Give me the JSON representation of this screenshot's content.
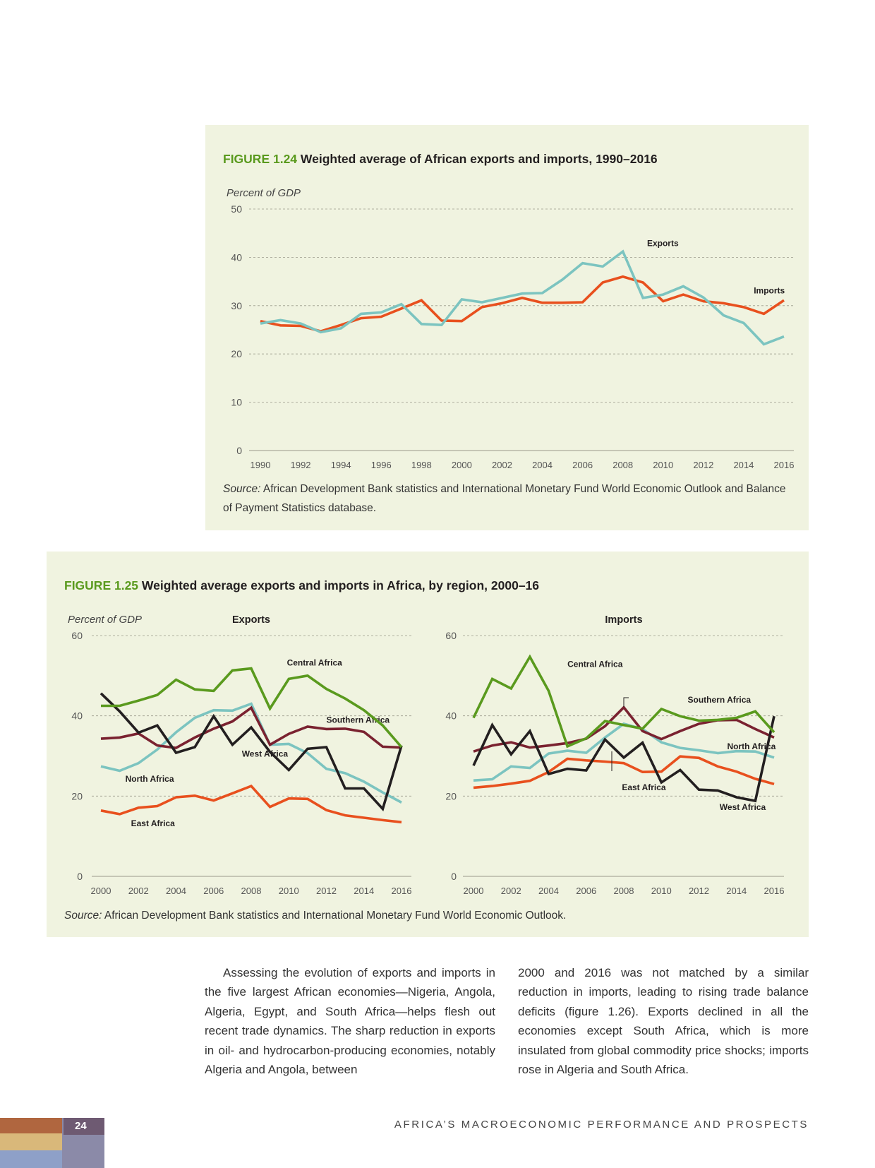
{
  "figure_124": {
    "number": "FIGURE 1.24",
    "title": "Weighted average of African exports and imports, 1990–2016",
    "source_label": "Source:",
    "source_text": " African Development Bank statistics and International Monetary Fund World Economic Outlook and Balance of Payment Statistics database."
  },
  "figure_125": {
    "number": "FIGURE 1.25",
    "title": "Weighted average exports and imports in Africa, by region, 2000–16",
    "source_label": "Source:",
    "source_text": " African Development Bank statistics and International Monetary Fund World Economic Outlook."
  },
  "chart_data": [
    {
      "type": "line",
      "title": "Weighted average of African exports and imports, 1990–2016",
      "ylabel": "Percent of GDP",
      "xlabel": "",
      "ylim": [
        0,
        50
      ],
      "yticks": [
        0,
        10,
        20,
        30,
        40,
        50
      ],
      "xticks": [
        1990,
        1992,
        1994,
        1996,
        1998,
        2000,
        2002,
        2004,
        2006,
        2008,
        2010,
        2012,
        2014,
        2016
      ],
      "grid": true,
      "x": [
        1990,
        1991,
        1992,
        1993,
        1994,
        1995,
        1996,
        1997,
        1998,
        1999,
        2000,
        2001,
        2002,
        2003,
        2004,
        2005,
        2006,
        2007,
        2008,
        2009,
        2010,
        2011,
        2012,
        2013,
        2014,
        2015,
        2016
      ],
      "series": [
        {
          "name": "Imports",
          "color": "#e8501e",
          "label_at": 2014.5,
          "label_value": 32.5,
          "values": [
            26.8,
            25.9,
            25.8,
            24.7,
            26.0,
            27.4,
            27.7,
            29.4,
            31.1,
            26.9,
            26.8,
            29.7,
            30.5,
            31.6,
            30.6,
            30.6,
            30.7,
            34.8,
            36.0,
            34.8,
            30.9,
            32.3,
            30.9,
            30.5,
            29.7,
            28.3,
            31.1
          ]
        },
        {
          "name": "Exports",
          "color": "#7cc4c0",
          "label_at": 2009.2,
          "label_value": 42.3,
          "values": [
            26.3,
            27.0,
            26.3,
            24.5,
            25.3,
            28.3,
            28.6,
            30.3,
            26.2,
            26.0,
            31.3,
            30.7,
            31.6,
            32.5,
            32.6,
            35.4,
            38.8,
            38.1,
            41.2,
            31.6,
            32.3,
            34.0,
            31.7,
            28.0,
            26.4,
            22.0,
            23.6
          ]
        }
      ]
    },
    {
      "type": "line",
      "title": "Exports",
      "ylabel": "Percent of GDP",
      "ylim": [
        0,
        60
      ],
      "yticks": [
        0,
        20,
        40,
        60
      ],
      "xticks": [
        2000,
        2002,
        2004,
        2006,
        2008,
        2010,
        2012,
        2014,
        2016
      ],
      "grid": true,
      "x": [
        2000,
        2001,
        2002,
        2003,
        2004,
        2005,
        2006,
        2007,
        2008,
        2009,
        2010,
        2011,
        2012,
        2013,
        2014,
        2015,
        2016
      ],
      "series": [
        {
          "name": "East Africa",
          "color": "#e8501e",
          "label_at": 2001.6,
          "label_value": 12.5,
          "values": [
            16.4,
            15.5,
            17.1,
            17.5,
            19.7,
            20.1,
            18.9,
            20.7,
            22.5,
            17.3,
            19.4,
            19.3,
            16.5,
            15.2,
            14.6,
            14.0,
            13.5
          ]
        },
        {
          "name": "North Africa",
          "color": "#7cc4c0",
          "label_at": 2001.3,
          "label_value": 23.6,
          "values": [
            27.4,
            26.3,
            28.2,
            31.6,
            35.9,
            39.5,
            41.4,
            41.3,
            43.0,
            32.8,
            33.0,
            30.7,
            26.8,
            25.7,
            23.6,
            20.9,
            18.4
          ]
        },
        {
          "name": "Southern Africa",
          "color": "#7a2230",
          "label_at": 2012.0,
          "label_value": 38.3,
          "values": [
            34.3,
            34.6,
            35.6,
            32.6,
            32.0,
            34.6,
            36.8,
            38.6,
            42.0,
            32.8,
            35.5,
            37.3,
            36.7,
            36.8,
            36.0,
            32.3,
            32.1
          ]
        },
        {
          "name": "West Africa",
          "color": "#231f20",
          "label_at": 2007.5,
          "label_value": 29.8,
          "values": [
            45.6,
            41.1,
            35.8,
            37.6,
            30.8,
            32.2,
            39.9,
            32.8,
            37.1,
            31.0,
            26.5,
            31.8,
            32.2,
            21.9,
            21.9,
            16.8,
            32.6
          ]
        },
        {
          "name": "Central Africa",
          "color": "#5a9a1e",
          "label_at": 2009.9,
          "label_value": 52.5,
          "values": [
            42.5,
            42.5,
            43.8,
            45.2,
            49.0,
            46.6,
            46.2,
            51.3,
            51.8,
            41.8,
            49.2,
            50.0,
            46.7,
            44.3,
            41.4,
            37.6,
            32.2
          ]
        }
      ]
    },
    {
      "type": "line",
      "title": "Imports",
      "ylabel": "Percent of GDP",
      "ylim": [
        0,
        60
      ],
      "yticks": [
        0,
        20,
        40,
        60
      ],
      "xticks": [
        2000,
        2002,
        2004,
        2006,
        2008,
        2010,
        2012,
        2014,
        2016
      ],
      "grid": true,
      "x": [
        2000,
        2001,
        2002,
        2003,
        2004,
        2005,
        2006,
        2007,
        2008,
        2009,
        2010,
        2011,
        2012,
        2013,
        2014,
        2015,
        2016
      ],
      "series": [
        {
          "name": "East Africa",
          "color": "#e8501e",
          "label_at": 2007.9,
          "label_value": 21.5,
          "values": [
            22.1,
            22.5,
            23.1,
            23.8,
            26.0,
            29.3,
            28.9,
            28.6,
            28.2,
            26.0,
            26.1,
            29.9,
            29.5,
            27.4,
            26.1,
            24.3,
            23.0
          ]
        },
        {
          "name": "North Africa",
          "color": "#7cc4c0",
          "label_at": 2013.5,
          "label_value": 31.7,
          "values": [
            23.9,
            24.2,
            27.4,
            27.0,
            30.6,
            31.3,
            30.8,
            34.6,
            38.0,
            36.7,
            33.4,
            32.0,
            31.4,
            30.7,
            31.2,
            31.1,
            29.6
          ]
        },
        {
          "name": "Southern Africa",
          "color": "#7a2230",
          "label_at": 2011.4,
          "label_value": 43.3,
          "values": [
            31.1,
            32.6,
            33.4,
            32.1,
            32.6,
            33.2,
            34.3,
            37.4,
            42.1,
            36.2,
            34.2,
            36.2,
            38.0,
            38.9,
            39.0,
            36.7,
            34.6
          ]
        },
        {
          "name": "West Africa",
          "color": "#231f20",
          "label_at": 2013.1,
          "label_value": 16.5,
          "values": [
            27.6,
            37.7,
            30.4,
            36.2,
            25.5,
            26.8,
            26.4,
            34.1,
            29.6,
            33.3,
            23.4,
            26.5,
            21.6,
            21.4,
            19.7,
            18.8,
            39.9
          ]
        },
        {
          "name": "Central Africa",
          "color": "#5a9a1e",
          "label_at": 2005.0,
          "label_value": 52.2,
          "values": [
            39.5,
            49.2,
            46.8,
            54.7,
            46.2,
            32.4,
            34.4,
            38.7,
            37.7,
            36.8,
            41.7,
            39.9,
            38.8,
            39.0,
            39.5,
            41.1,
            35.9
          ]
        }
      ]
    }
  ],
  "body_text": {
    "col1": "Assessing the evolution of exports and imports in the five largest African economies—Nigeria, Angola, Algeria, Egypt, and South Africa—helps flesh out recent trade dynamics. The sharp reduction in exports in oil- and hydrocarbon-producing economies, notably Algeria and Angola, between",
    "col2": "2000 and 2016 was not matched by a similar reduction in imports, leading to rising trade balance deficits (figure 1.26). Exports declined in all the economies except South Africa, which is more insulated from global commodity price shocks; imports rose in Algeria and South Africa."
  },
  "footer": {
    "page_number": "24",
    "running_title": "AFRICA’S MACROECONOMIC PERFORMANCE AND PROSPECTS"
  }
}
